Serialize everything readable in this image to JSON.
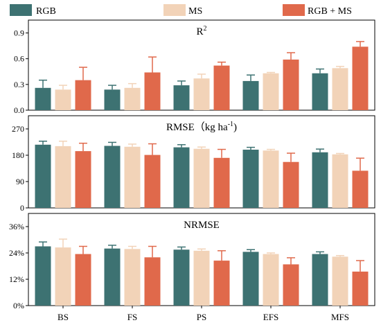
{
  "chart_data": {
    "type": "bar",
    "categories": [
      "BS",
      "FS",
      "PS",
      "EFS",
      "MFS"
    ],
    "legend": {
      "placement": "top",
      "entries": [
        {
          "name": "RGB",
          "color": "#3d7272"
        },
        {
          "name": "MS",
          "color": "#f2d3b8"
        },
        {
          "name": "RGB + MS",
          "color": "#e0694b"
        }
      ]
    },
    "panels": [
      {
        "title": "R",
        "title_sup": "2",
        "title_suffix": "",
        "ylim": [
          0,
          1.05
        ],
        "yticks": [
          {
            "value": 0.0,
            "label": "0.0"
          },
          {
            "value": 0.3,
            "label": "0.3"
          },
          {
            "value": 0.6,
            "label": "0.6"
          },
          {
            "value": 0.9,
            "label": "0.9"
          }
        ],
        "series": [
          {
            "name": "RGB",
            "values": [
              0.26,
              0.24,
              0.29,
              0.34,
              0.43
            ],
            "errors": [
              0.09,
              0.05,
              0.05,
              0.07,
              0.05
            ]
          },
          {
            "name": "MS",
            "values": [
              0.24,
              0.26,
              0.37,
              0.43,
              0.49
            ],
            "errors": [
              0.05,
              0.05,
              0.05,
              0.01,
              0.02
            ]
          },
          {
            "name": "RGB + MS",
            "values": [
              0.35,
              0.44,
              0.52,
              0.59,
              0.74
            ],
            "errors": [
              0.15,
              0.18,
              0.04,
              0.08,
              0.06
            ]
          }
        ]
      },
      {
        "title": "RMSE（kg ha",
        "title_sup": "-1",
        "title_suffix": ")",
        "ylim": [
          0,
          315
        ],
        "yticks": [
          {
            "value": 0,
            "label": "0"
          },
          {
            "value": 90,
            "label": "90"
          },
          {
            "value": 180,
            "label": "180"
          },
          {
            "value": 270,
            "label": "270"
          }
        ],
        "series": [
          {
            "name": "RGB",
            "values": [
              216,
              212,
              207,
              199,
              190
            ],
            "errors": [
              12,
              12,
              9,
              8,
              11
            ]
          },
          {
            "name": "MS",
            "values": [
              211,
              209,
              202,
              196,
              183
            ],
            "errors": [
              17,
              9,
              6,
              4,
              3
            ]
          },
          {
            "name": "RGB + MS",
            "values": [
              194,
              181,
              171,
              157,
              127
            ],
            "errors": [
              27,
              38,
              29,
              30,
              43
            ]
          }
        ]
      },
      {
        "title": "NRMSE",
        "title_sup": "",
        "title_suffix": "",
        "ylim": [
          0,
          42
        ],
        "yticks": [
          {
            "value": 0,
            "label": "0%"
          },
          {
            "value": 12,
            "label": "12%"
          },
          {
            "value": 24,
            "label": "24%"
          },
          {
            "value": 36,
            "label": "36%"
          }
        ],
        "series": [
          {
            "name": "RGB",
            "values": [
              27.0,
              26.0,
              25.5,
              24.5,
              23.5
            ],
            "errors": [
              2.0,
              1.5,
              1.2,
              1.0,
              1.0
            ]
          },
          {
            "name": "MS",
            "values": [
              26.5,
              25.8,
              25.0,
              23.5,
              22.3
            ],
            "errors": [
              3.8,
              1.2,
              0.8,
              0.5,
              0.5
            ]
          },
          {
            "name": "RGB + MS",
            "values": [
              23.5,
              22.0,
              20.5,
              18.8,
              15.5
            ],
            "errors": [
              3.5,
              5.0,
              4.5,
              3.0,
              5.0
            ]
          }
        ]
      }
    ]
  }
}
